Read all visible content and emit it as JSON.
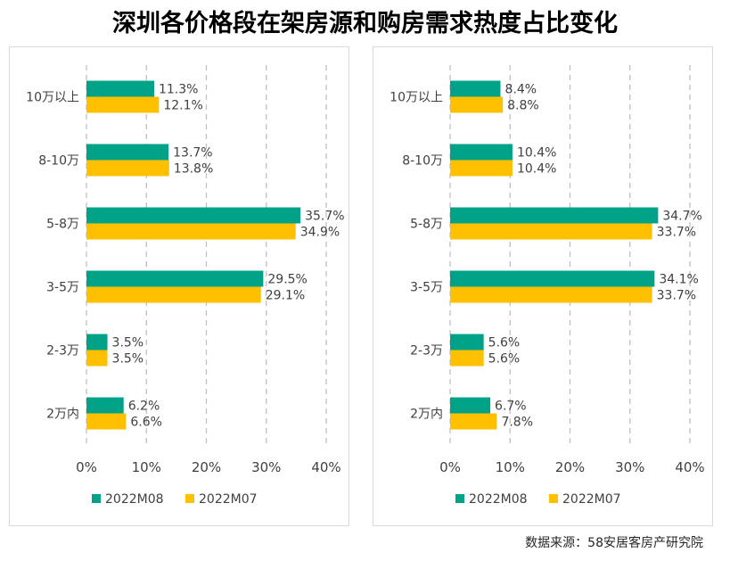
{
  "title": "深圳各价格段在架房源和购房需求热度占比变化",
  "source": "数据来源：58安居客房产研究院",
  "colors": {
    "series_2022M08": "#00A388",
    "series_2022M07": "#FFC000",
    "grid": "#bfbfbf",
    "text": "#404040"
  },
  "chart_data": [
    {
      "type": "bar",
      "orientation": "horizontal",
      "title": "",
      "categories": [
        "10万以上",
        "8-10万",
        "5-8万",
        "3-5万",
        "2-3万",
        "2万内"
      ],
      "series": [
        {
          "name": "2022M08",
          "values": [
            11.3,
            13.7,
            35.7,
            29.5,
            3.5,
            6.2
          ],
          "labels": [
            "11.3%",
            "13.7%",
            "35.7%",
            "29.5%",
            "3.5%",
            "6.2%"
          ]
        },
        {
          "name": "2022M07",
          "values": [
            12.1,
            13.8,
            34.9,
            29.1,
            3.5,
            6.6
          ],
          "labels": [
            "12.1%",
            "13.8%",
            "34.9%",
            "29.1%",
            "3.5%",
            "6.6%"
          ]
        }
      ],
      "xlim": [
        0,
        40
      ],
      "xticks": [
        0,
        10,
        20,
        30,
        40
      ],
      "xtick_labels": [
        "0%",
        "10%",
        "20%",
        "30%",
        "40%"
      ],
      "grid": "vertical dashed",
      "legend": "bottom",
      "xlabel": "",
      "ylabel": ""
    },
    {
      "type": "bar",
      "orientation": "horizontal",
      "title": "",
      "categories": [
        "10万以上",
        "8-10万",
        "5-8万",
        "3-5万",
        "2-3万",
        "2万内"
      ],
      "series": [
        {
          "name": "2022M08",
          "values": [
            8.4,
            10.4,
            34.7,
            34.1,
            5.6,
            6.7
          ],
          "labels": [
            "8.4%",
            "10.4%",
            "34.7%",
            "34.1%",
            "5.6%",
            "6.7%"
          ]
        },
        {
          "name": "2022M07",
          "values": [
            8.8,
            10.4,
            33.7,
            33.7,
            5.6,
            7.8
          ],
          "labels": [
            "8.8%",
            "10.4%",
            "33.7%",
            "33.7%",
            "5.6%",
            "7.8%"
          ]
        }
      ],
      "xlim": [
        0,
        40
      ],
      "xticks": [
        0,
        10,
        20,
        30,
        40
      ],
      "xtick_labels": [
        "0%",
        "10%",
        "20%",
        "30%",
        "40%"
      ],
      "grid": "vertical dashed",
      "legend": "bottom",
      "xlabel": "",
      "ylabel": ""
    }
  ]
}
